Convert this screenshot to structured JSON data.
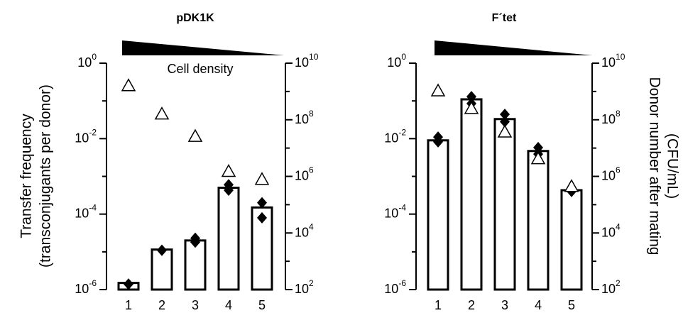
{
  "chart_data": [
    {
      "type": "bar",
      "title": "pDK1K",
      "ylabel": [
        "Transfer frequency",
        "(transconjugants per donor)"
      ],
      "annotation": "Cell density",
      "categories": [
        "1",
        "2",
        "3",
        "4",
        "5"
      ],
      "log_y": true,
      "log_y2": true,
      "ylim": [
        1e-06,
        1
      ],
      "yticks": [
        {
          "value": 1e-06,
          "base": "10",
          "exp": "-6"
        },
        {
          "value": 0.0001,
          "base": "10",
          "exp": "-4"
        },
        {
          "value": 0.01,
          "base": "10",
          "exp": "-2"
        },
        {
          "value": 1,
          "base": "10",
          "exp": "0"
        }
      ],
      "yminor": [
        1e-05,
        0.001,
        0.1
      ],
      "y2lim": [
        100,
        10000000000
      ],
      "y2ticks": [
        {
          "value": 100,
          "base": "10",
          "exp": "2"
        },
        {
          "value": 10000,
          "base": "10",
          "exp": "4"
        },
        {
          "value": 1000000,
          "base": "10",
          "exp": "6"
        },
        {
          "value": 100000000,
          "base": "10",
          "exp": "8"
        },
        {
          "value": 10000000000,
          "base": "10",
          "exp": "10"
        }
      ],
      "y2minor": [
        1000,
        100000,
        10000000,
        1000000000
      ],
      "series": [
        {
          "marker": "bar",
          "color": "#ffffff",
          "values": [
            1.5e-06,
            1.15e-05,
            2e-05,
            0.0005,
            0.00015
          ]
        },
        {
          "marker": "diamond",
          "color": "#000000",
          "values": [
            1.4e-06,
            1.1e-05,
            2.3e-05,
            0.0006,
            0.0002
          ]
        },
        {
          "marker": "diamond",
          "color": "#000000",
          "values": [
            1.4e-06,
            1.1e-05,
            1.8e-05,
            0.00043,
            8e-05
          ]
        },
        {
          "marker": "triangle",
          "color": "#ffffff",
          "axis": "y2",
          "values": [
            1600000000,
            160000000,
            26000000,
            1500000,
            780000
          ]
        }
      ]
    },
    {
      "type": "bar",
      "title": "F´tet",
      "y2label": [
        "Donor number after mating",
        "(CFU/mL)"
      ],
      "categories": [
        "1",
        "2",
        "3",
        "4",
        "5"
      ],
      "log_y": true,
      "log_y2": true,
      "ylim": [
        1e-06,
        1
      ],
      "yticks": [
        {
          "value": 1e-06,
          "base": "10",
          "exp": "-6"
        },
        {
          "value": 0.0001,
          "base": "10",
          "exp": "-4"
        },
        {
          "value": 0.01,
          "base": "10",
          "exp": "-2"
        },
        {
          "value": 1,
          "base": "10",
          "exp": "0"
        }
      ],
      "yminor": [
        1e-05,
        0.001,
        0.1
      ],
      "y2lim": [
        100,
        10000000000
      ],
      "y2ticks": [
        {
          "value": 100,
          "base": "10",
          "exp": "2"
        },
        {
          "value": 10000,
          "base": "10",
          "exp": "4"
        },
        {
          "value": 1000000,
          "base": "10",
          "exp": "6"
        },
        {
          "value": 100000000,
          "base": "10",
          "exp": "8"
        },
        {
          "value": 10000000000,
          "base": "10",
          "exp": "10"
        }
      ],
      "y2minor": [
        1000,
        100000,
        10000000,
        1000000000
      ],
      "series": [
        {
          "marker": "bar",
          "color": "#ffffff",
          "values": [
            0.009,
            0.11,
            0.033,
            0.0047,
            0.00043
          ]
        },
        {
          "marker": "diamond",
          "color": "#000000",
          "values": [
            0.011,
            0.13,
            0.044,
            0.0058,
            0.0004
          ]
        },
        {
          "marker": "diamond",
          "color": "#000000",
          "values": [
            0.0082,
            0.085,
            0.028,
            0.0039,
            0.0004
          ]
        },
        {
          "marker": "triangle",
          "color": "#ffffff",
          "axis": "y2",
          "values": [
            1050000000,
            250000000,
            37000000,
            4200000,
            440000
          ]
        }
      ]
    }
  ]
}
